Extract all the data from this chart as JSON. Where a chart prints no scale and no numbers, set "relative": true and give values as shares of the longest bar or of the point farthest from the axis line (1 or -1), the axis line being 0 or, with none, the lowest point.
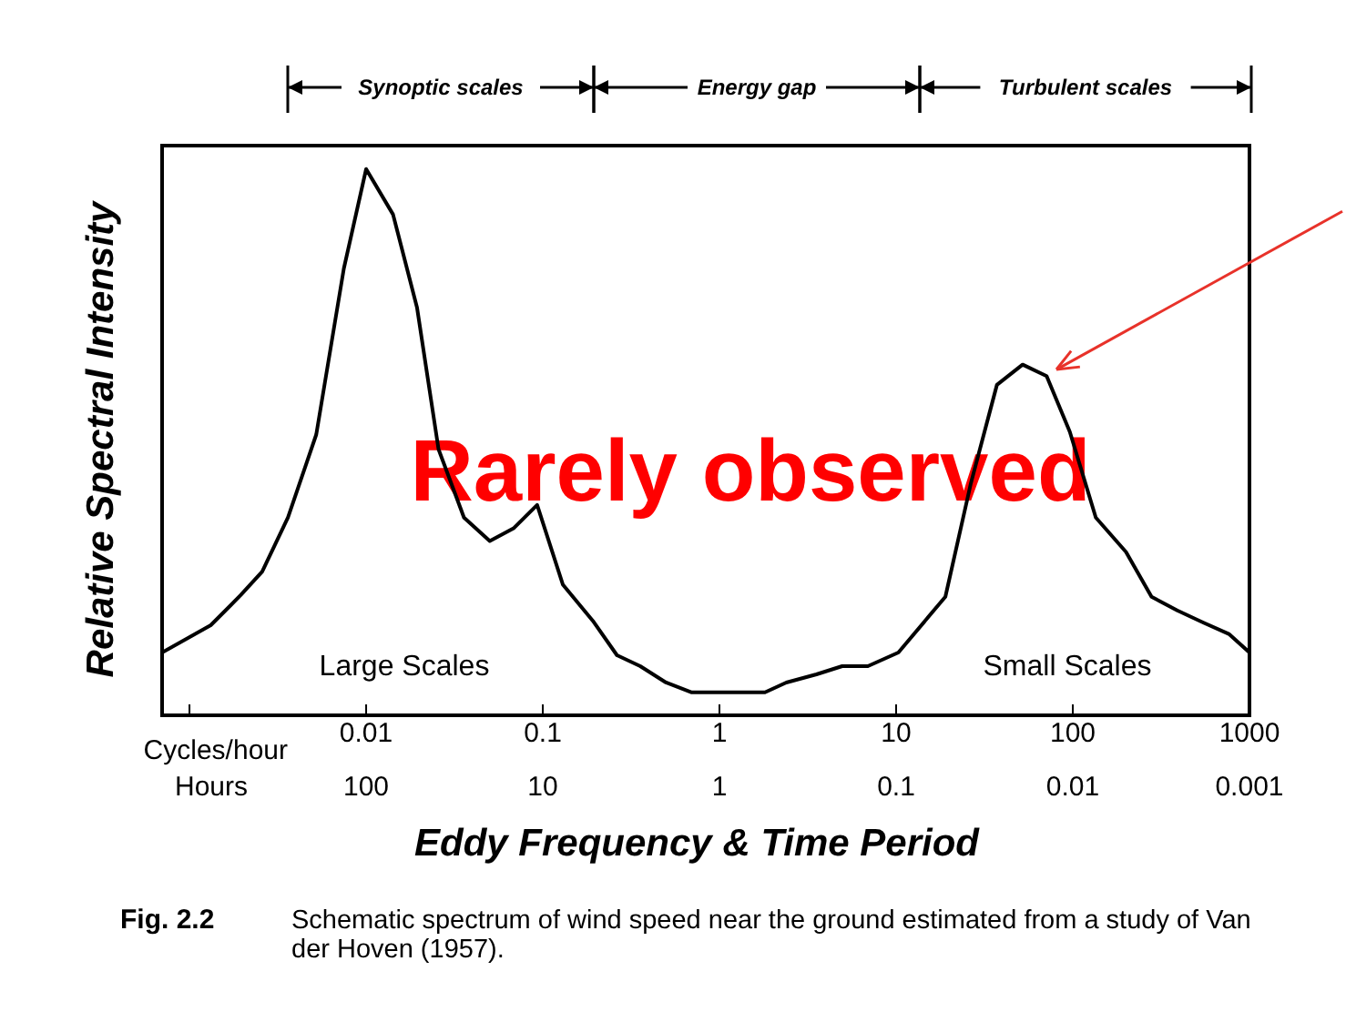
{
  "chart_data": {
    "type": "line",
    "relative": true,
    "log": "x",
    "xlabel": "Eddy Frequency & Time Period",
    "ylabel": "Relative Spectral Intensity",
    "x": [
      0.0007,
      0.00132,
      0.00195,
      0.00258,
      0.00361,
      0.00522,
      0.00748,
      0.01,
      0.0142,
      0.0194,
      0.0257,
      0.0358,
      0.0501,
      0.0687,
      0.0929,
      0.13,
      0.192,
      0.263,
      0.356,
      0.498,
      0.697,
      1.81,
      2.39,
      3.54,
      4.95,
      6.92,
      10.3,
      19,
      26.5,
      37.2,
      52,
      71.1,
      96.2,
      135,
      200,
      279,
      390,
      546,
      764,
      1000
    ],
    "series": [
      {
        "color": "#000000",
        "line_style": "solid",
        "values": [
          0.115,
          0.165,
          0.22,
          0.263,
          0.362,
          0.514,
          0.818,
          1,
          0.917,
          0.747,
          0.487,
          0.362,
          0.319,
          0.343,
          0.385,
          0.239,
          0.173,
          0.11,
          0.09,
          0.06,
          0.042,
          0.042,
          0.06,
          0.075,
          0.09,
          0.09,
          0.115,
          0.217,
          0.425,
          0.605,
          0.642,
          0.621,
          0.519,
          0.362,
          0.299,
          0.217,
          0.192,
          0.17,
          0.149,
          0.115
        ]
      }
    ],
    "xlim": [
      0.0007,
      1000
    ],
    "xticks": [
      {
        "value": 0.001,
        "label": null
      },
      0.01,
      0.1,
      1,
      10,
      100,
      1000
    ],
    "annotations": [
      "Synoptic scales",
      "Energy gap",
      "Turbulent scales",
      "Rarely observed",
      "Large Scales",
      "Small Scales",
      "Cycles/hour",
      "Fig. 2.2",
      "Schematic spectrum of wind speed near the ground estimated from a study of Van der Hoven (1957).",
      "Hours",
      "100",
      "10",
      "1",
      "0.1",
      "0.01",
      "0.001"
    ]
  }
}
